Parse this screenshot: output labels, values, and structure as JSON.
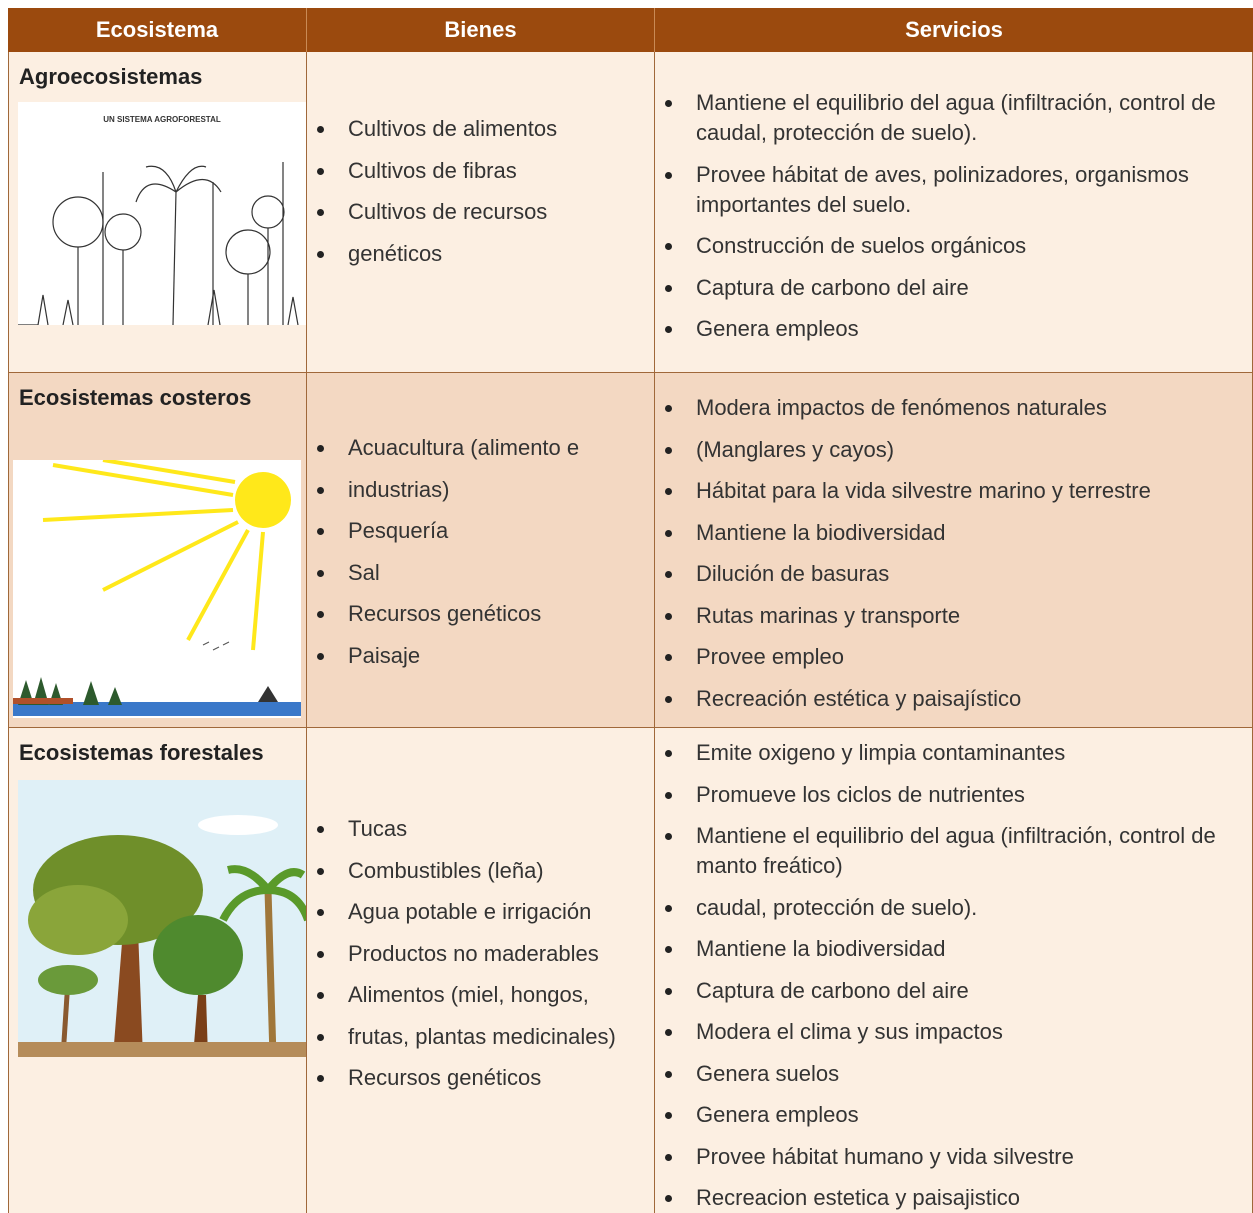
{
  "table": {
    "header": [
      "Ecosistema",
      "Bienes",
      "Servicios"
    ],
    "rows": [
      {
        "ecosistema": "Agroecosistemas",
        "imagen": "UN SISTEMA AGROFORESTAL",
        "bienes": [
          "Cultivos de alimentos",
          "Cultivos de fibras",
          "Cultivos de recursos",
          "genéticos"
        ],
        "servicios": [
          "Mantiene el equilibrio del agua (infiltración, control de caudal, protección de suelo).",
          "Provee hábitat de aves, polinizadores, organismos importantes del suelo.",
          "Construcción de suelos orgánicos",
          "Captura de carbono del aire",
          "Genera empleos"
        ]
      },
      {
        "ecosistema": "Ecosistemas costeros",
        "bienes": [
          "Acuacultura (alimento e",
          "industrias)",
          "Pesquería",
          "Sal",
          "Recursos genéticos",
          "Paisaje"
        ],
        "servicios": [
          "Modera impactos de fenómenos naturales",
          "(Manglares y cayos)",
          "Hábitat para la vida silvestre marino y terrestre",
          "Mantiene la biodiversidad",
          "Dilución de basuras",
          "Rutas marinas y transporte",
          "Provee empleo",
          "Recreación estética y paisajístico"
        ]
      },
      {
        "ecosistema": "Ecosistemas forestales",
        "bienes": [
          "Tucas",
          "Combustibles (leña)",
          "Agua potable e irrigación",
          "Productos no maderables",
          "Alimentos (miel, hongos,",
          "frutas, plantas medicinales)",
          "Recursos genéticos"
        ],
        "servicios": [
          "Emite oxigeno y limpia contaminantes",
          "Promueve los ciclos de nutrientes",
          "Mantiene el equilibrio del agua (infiltración, control de manto freático)",
          "caudal, protección de suelo).",
          "Mantiene la biodiversidad",
          "Captura de carbono del aire",
          "Modera el clima y sus impactos",
          "Genera suelos",
          "Genera empleos",
          "Provee hábitat humano y vida silvestre",
          "Recreacion estetica y paisajistico"
        ]
      }
    ]
  }
}
